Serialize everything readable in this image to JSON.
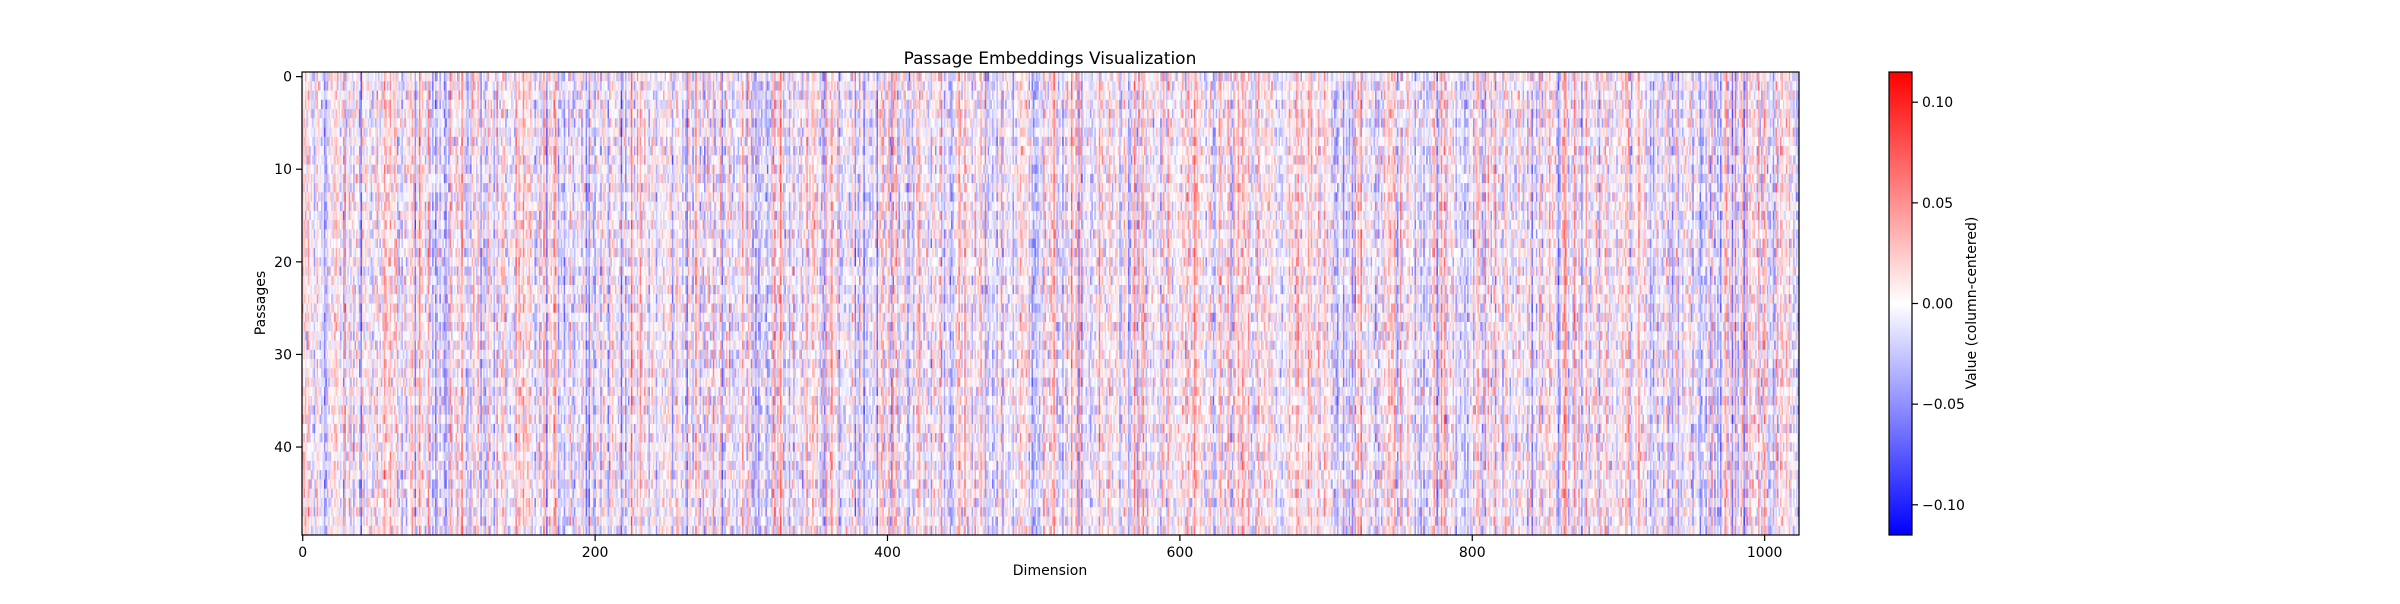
{
  "chart_data": {
    "type": "heatmap",
    "title": "Passage Embeddings Visualization",
    "xlabel": "Dimension",
    "ylabel": "Passages",
    "n_rows": 50,
    "n_cols": 1024,
    "x_ticks": [
      0,
      200,
      400,
      600,
      800,
      1000
    ],
    "y_ticks": [
      0,
      10,
      20,
      30,
      40
    ],
    "colormap": "bwr",
    "vmin": -0.115,
    "vmax": 0.115,
    "colorbar": {
      "label": "Value (column-centered)",
      "ticks": [
        0.1,
        0.05,
        0.0,
        -0.05,
        -0.1
      ],
      "tick_labels": [
        "0.10",
        "0.05",
        "0.00",
        "−0.05",
        "−0.10"
      ],
      "colors": {
        "low": "#0000ff",
        "mid": "#ffffff",
        "high": "#ff0000"
      }
    }
  }
}
